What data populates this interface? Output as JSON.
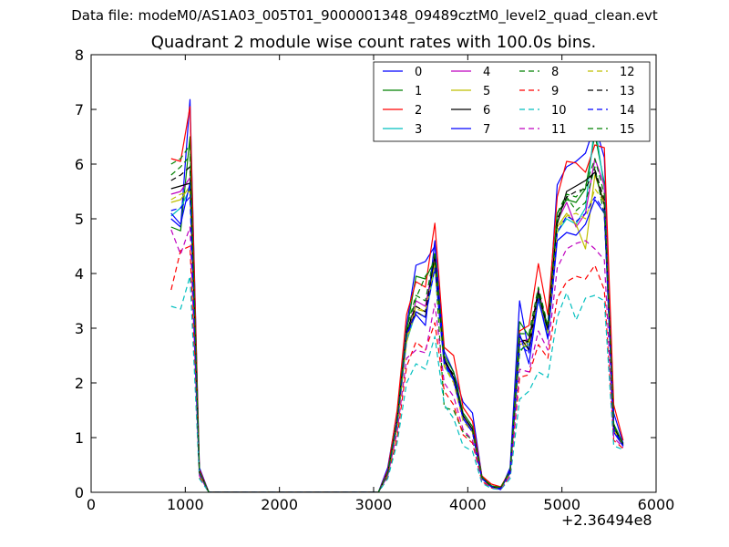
{
  "chart_data": {
    "type": "line",
    "suptitle": "Data file: modeM0/AS1A03_005T01_9000001348_09489cztM0_level2_quad_clean.evt",
    "title": "Quadrant 2 module wise count rates with 100.0s bins.",
    "xlabel": "",
    "ylabel": "",
    "x_offset_label": "+2.36494e8",
    "xlim": [
      0,
      6000
    ],
    "ylim": [
      0,
      8
    ],
    "x_ticks": [
      0,
      1000,
      2000,
      3000,
      4000,
      5000,
      6000
    ],
    "y_ticks": [
      0,
      1,
      2,
      3,
      4,
      5,
      6,
      7,
      8
    ],
    "grid": false,
    "legend_position": "top-right",
    "legend_columns": 4,
    "x": [
      850,
      950,
      1050,
      1150,
      1250,
      1350,
      1450,
      1550,
      1650,
      1750,
      1850,
      1950,
      2050,
      2150,
      2250,
      2350,
      2450,
      2550,
      2650,
      2750,
      2850,
      2950,
      3050,
      3150,
      3250,
      3350,
      3450,
      3550,
      3650,
      3750,
      3850,
      3950,
      4050,
      4150,
      4250,
      4350,
      4450,
      4550,
      4650,
      4750,
      4850,
      4950,
      5050,
      5150,
      5250,
      5350,
      5450,
      5550,
      5650
    ],
    "series": [
      {
        "name": "0",
        "color": "#0000ff",
        "style": "solid",
        "values": [
          5.0,
          4.85,
          7.18,
          0.45,
          0,
          0,
          0,
          0,
          0,
          0,
          0,
          0,
          0,
          0,
          0,
          0,
          0,
          0,
          0,
          0,
          0,
          0,
          0,
          0.45,
          1.45,
          3.05,
          4.15,
          4.22,
          4.5,
          2.58,
          2.2,
          1.65,
          1.45,
          0.3,
          0.1,
          0.05,
          0.45,
          3.5,
          2.55,
          3.58,
          3.05,
          5.62,
          5.95,
          6.05,
          6.2,
          6.72,
          6.12,
          1.45,
          0.9
        ]
      },
      {
        "name": "1",
        "color": "#008000",
        "style": "solid",
        "values": [
          4.85,
          4.78,
          6.5,
          0.38,
          0,
          0,
          0,
          0,
          0,
          0,
          0,
          0,
          0,
          0,
          0,
          0,
          0,
          0,
          0,
          0,
          0,
          0,
          0,
          0.38,
          1.3,
          2.95,
          3.95,
          3.9,
          4.25,
          2.5,
          2.2,
          1.45,
          1.2,
          0.28,
          0.12,
          0.08,
          0.35,
          3.12,
          2.85,
          3.6,
          2.95,
          5.1,
          5.35,
          5.3,
          5.55,
          6.55,
          5.65,
          1.25,
          0.88
        ]
      },
      {
        "name": "2",
        "color": "#ff0000",
        "style": "solid",
        "values": [
          6.1,
          6.05,
          7.05,
          0.42,
          0,
          0,
          0,
          0,
          0,
          0,
          0,
          0,
          0,
          0,
          0,
          0,
          0,
          0,
          0,
          0,
          0,
          0,
          0,
          0.4,
          1.5,
          3.25,
          3.85,
          3.75,
          4.92,
          2.65,
          2.5,
          1.55,
          1.3,
          0.3,
          0.15,
          0.1,
          0.4,
          2.95,
          3.05,
          4.18,
          3.25,
          5.4,
          6.05,
          6.02,
          5.85,
          6.35,
          6.3,
          1.6,
          0.95
        ]
      },
      {
        "name": "3",
        "color": "#00bfbf",
        "style": "solid",
        "values": [
          5.05,
          5.2,
          5.55,
          0.35,
          0,
          0,
          0,
          0,
          0,
          0,
          0,
          0,
          0,
          0,
          0,
          0,
          0,
          0,
          0,
          0,
          0,
          0,
          0,
          0.3,
          1.2,
          2.75,
          3.3,
          3.2,
          4.1,
          2.3,
          2.05,
          1.35,
          1.1,
          0.25,
          0.1,
          0.08,
          0.35,
          2.6,
          2.7,
          3.5,
          2.9,
          4.75,
          5.0,
          4.9,
          5.2,
          6.75,
          5.55,
          1.15,
          0.85
        ]
      },
      {
        "name": "4",
        "color": "#bf00bf",
        "style": "solid",
        "values": [
          5.45,
          5.5,
          5.75,
          0.36,
          0,
          0,
          0,
          0,
          0,
          0,
          0,
          0,
          0,
          0,
          0,
          0,
          0,
          0,
          0,
          0,
          0,
          0,
          0,
          0.35,
          1.25,
          2.85,
          3.5,
          3.4,
          4.3,
          2.4,
          2.1,
          1.4,
          1.15,
          0.26,
          0.1,
          0.08,
          0.38,
          2.75,
          2.8,
          3.7,
          3.0,
          4.95,
          5.3,
          4.85,
          5.1,
          6.1,
          5.6,
          1.2,
          0.86
        ]
      },
      {
        "name": "5",
        "color": "#bfbf00",
        "style": "solid",
        "values": [
          5.3,
          5.35,
          5.6,
          0.34,
          0,
          0,
          0,
          0,
          0,
          0,
          0,
          0,
          0,
          0,
          0,
          0,
          0,
          0,
          0,
          0,
          0,
          0,
          0,
          0.33,
          1.2,
          2.8,
          3.4,
          3.3,
          4.2,
          2.35,
          2.05,
          1.35,
          1.1,
          0.25,
          0.1,
          0.08,
          0.36,
          2.7,
          2.75,
          3.6,
          2.95,
          4.85,
          5.1,
          4.9,
          4.45,
          5.8,
          5.3,
          1.15,
          0.85
        ]
      },
      {
        "name": "6",
        "color": "#000000",
        "style": "solid",
        "values": [
          5.55,
          5.6,
          5.65,
          0.36,
          0,
          0,
          0,
          0,
          0,
          0,
          0,
          0,
          0,
          0,
          0,
          0,
          0,
          0,
          0,
          0,
          0,
          0,
          0,
          0.35,
          1.3,
          2.9,
          3.3,
          3.2,
          4.35,
          2.45,
          2.1,
          1.4,
          1.15,
          0.27,
          0.1,
          0.08,
          0.38,
          2.85,
          2.6,
          3.65,
          2.95,
          4.9,
          5.5,
          5.6,
          5.7,
          5.85,
          5.25,
          1.2,
          0.87
        ]
      },
      {
        "name": "7",
        "color": "#0000ff",
        "style": "solid",
        "values": [
          5.1,
          4.9,
          5.65,
          0.38,
          0,
          0,
          0,
          0,
          0,
          0,
          0,
          0,
          0,
          0,
          0,
          0,
          0,
          0,
          0,
          0,
          0,
          0,
          0,
          0.36,
          1.3,
          2.9,
          3.25,
          3.05,
          4.6,
          2.4,
          2.05,
          1.35,
          1.1,
          0.26,
          0.1,
          0.06,
          0.4,
          2.9,
          2.35,
          3.55,
          2.8,
          4.6,
          4.75,
          4.7,
          4.9,
          5.35,
          5.1,
          1.1,
          0.84
        ]
      },
      {
        "name": "8",
        "color": "#008000",
        "style": "dashed",
        "values": [
          5.8,
          5.95,
          6.15,
          0.36,
          0,
          0,
          0,
          0,
          0,
          0,
          0,
          0,
          0,
          0,
          0,
          0,
          0,
          0,
          0,
          0,
          0,
          0,
          0,
          0.34,
          1.25,
          2.9,
          3.55,
          3.95,
          4.2,
          1.55,
          1.5,
          1.1,
          0.95,
          0.27,
          0.12,
          0.09,
          0.36,
          2.55,
          2.8,
          3.6,
          3.05,
          4.95,
          5.4,
          5.15,
          5.3,
          5.95,
          5.05,
          1.2,
          0.88
        ]
      },
      {
        "name": "9",
        "color": "#ff0000",
        "style": "dashed",
        "values": [
          3.7,
          4.42,
          4.5,
          0.28,
          0,
          0,
          0,
          0,
          0,
          0,
          0,
          0,
          0,
          0,
          0,
          0,
          0,
          0,
          0,
          0,
          0,
          0,
          0,
          0.28,
          1.0,
          2.3,
          2.75,
          2.6,
          3.1,
          1.85,
          1.6,
          1.05,
          0.9,
          0.2,
          0.08,
          0.06,
          0.3,
          2.1,
          2.15,
          2.7,
          2.45,
          3.55,
          3.85,
          3.95,
          3.9,
          4.15,
          3.7,
          0.95,
          0.8
        ]
      },
      {
        "name": "10",
        "color": "#00bfbf",
        "style": "dashed",
        "values": [
          3.4,
          3.35,
          3.95,
          0.25,
          0,
          0,
          0,
          0,
          0,
          0,
          0,
          0,
          0,
          0,
          0,
          0,
          0,
          0,
          0,
          0,
          0,
          0,
          0,
          0.25,
          0.9,
          2.0,
          2.35,
          2.25,
          2.85,
          1.6,
          1.35,
          0.85,
          0.75,
          0.17,
          0.07,
          0.05,
          0.25,
          1.7,
          1.85,
          2.2,
          2.1,
          3.2,
          3.65,
          3.15,
          3.55,
          3.6,
          3.5,
          0.85,
          0.78
        ]
      },
      {
        "name": "11",
        "color": "#bf00bf",
        "style": "dashed",
        "values": [
          4.8,
          4.35,
          4.85,
          0.3,
          0,
          0,
          0,
          0,
          0,
          0,
          0,
          0,
          0,
          0,
          0,
          0,
          0,
          0,
          0,
          0,
          0,
          0,
          0,
          0.3,
          1.1,
          2.45,
          2.6,
          2.55,
          3.45,
          2.0,
          1.75,
          1.15,
          0.95,
          0.22,
          0.09,
          0.06,
          0.3,
          2.25,
          2.2,
          2.95,
          2.6,
          4.1,
          4.45,
          4.55,
          4.6,
          4.45,
          4.25,
          1.0,
          0.82
        ]
      },
      {
        "name": "12",
        "color": "#bfbf00",
        "style": "dashed",
        "values": [
          5.35,
          5.45,
          5.5,
          0.34,
          0,
          0,
          0,
          0,
          0,
          0,
          0,
          0,
          0,
          0,
          0,
          0,
          0,
          0,
          0,
          0,
          0,
          0,
          0,
          0.33,
          1.2,
          2.75,
          3.35,
          3.3,
          4.15,
          2.3,
          2.0,
          1.3,
          1.1,
          0.25,
          0.1,
          0.07,
          0.35,
          2.65,
          2.7,
          3.55,
          2.9,
          4.8,
          5.05,
          5.1,
          5.0,
          5.55,
          5.3,
          1.15,
          0.86
        ]
      },
      {
        "name": "13",
        "color": "#000000",
        "style": "dashed",
        "values": [
          5.7,
          5.8,
          5.95,
          0.37,
          0,
          0,
          0,
          0,
          0,
          0,
          0,
          0,
          0,
          0,
          0,
          0,
          0,
          0,
          0,
          0,
          0,
          0,
          0,
          0.36,
          1.3,
          2.95,
          3.4,
          3.3,
          4.3,
          2.4,
          2.15,
          1.4,
          1.15,
          0.27,
          0.1,
          0.08,
          0.38,
          2.8,
          2.75,
          3.7,
          3.0,
          5.0,
          5.4,
          5.5,
          5.55,
          5.9,
          5.35,
          1.2,
          0.87
        ]
      },
      {
        "name": "14",
        "color": "#0000ff",
        "style": "dashed",
        "values": [
          5.15,
          5.2,
          5.4,
          0.35,
          0,
          0,
          0,
          0,
          0,
          0,
          0,
          0,
          0,
          0,
          0,
          0,
          0,
          0,
          0,
          0,
          0,
          0,
          0,
          0.34,
          1.25,
          2.85,
          3.3,
          3.2,
          4.1,
          2.35,
          2.05,
          1.35,
          1.1,
          0.25,
          0.1,
          0.07,
          0.36,
          2.7,
          2.55,
          3.55,
          2.85,
          4.75,
          5.05,
          4.95,
          5.1,
          5.4,
          5.15,
          1.15,
          0.85
        ]
      },
      {
        "name": "15",
        "color": "#008000",
        "style": "dashed",
        "values": [
          6.0,
          6.1,
          6.35,
          0.38,
          0,
          0,
          0,
          0,
          0,
          0,
          0,
          0,
          0,
          0,
          0,
          0,
          0,
          0,
          0,
          0,
          0,
          0,
          0,
          0.36,
          1.35,
          3.0,
          3.6,
          3.5,
          4.4,
          2.5,
          2.2,
          1.45,
          1.2,
          0.28,
          0.12,
          0.08,
          0.4,
          2.9,
          2.9,
          3.75,
          3.05,
          5.1,
          5.45,
          5.4,
          5.6,
          6.1,
          5.45,
          1.25,
          0.88
        ]
      }
    ]
  }
}
